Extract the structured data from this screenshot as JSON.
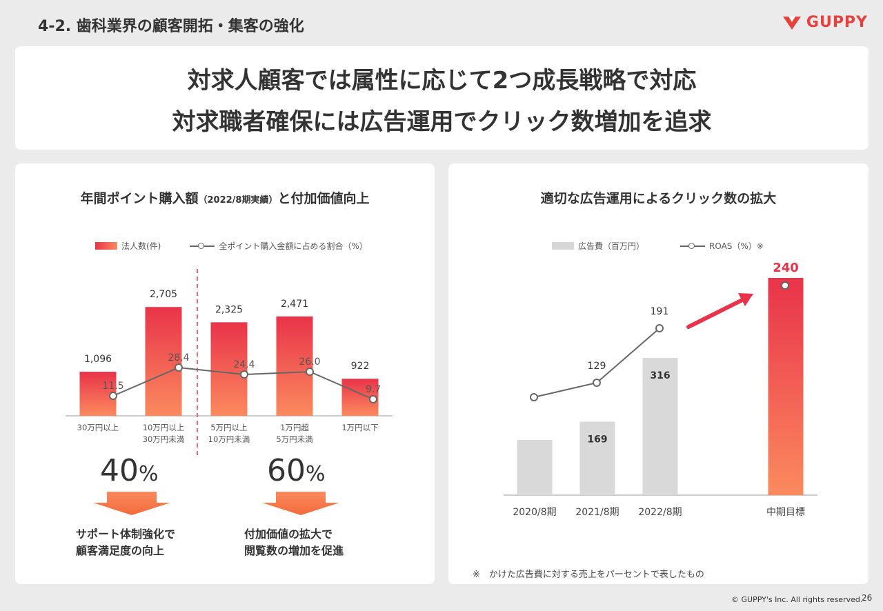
{
  "header": {
    "title": "4-2.  歯科業界の顧客開拓・集客の強化",
    "logo_text": "GUPPY"
  },
  "banner": {
    "line1": "対求人顧客では属性に応じて2つ成長戦略で対応",
    "line2": "対求職者確保には広告運用でクリック数増加を追求"
  },
  "left_panel": {
    "title_main": "年間ポイント購入額",
    "title_sub": "（2022/8期実績）",
    "title_tail": "と付加価値向上",
    "legend_bar": "法人数(件)",
    "legend_line": "全ポイント購入金額に占める割合（%）",
    "left_pct_value": "40",
    "left_pct_unit": "%",
    "right_pct_value": "60",
    "right_pct_unit": "%",
    "left_caption_1": "サポート体制強化で",
    "left_caption_2": "顧客満足度の向上",
    "right_caption_1": "付加価値の拡大で",
    "right_caption_2": "閲覧数の増加を促進"
  },
  "right_panel": {
    "title": "適切な広告運用によるクリック数の拡大",
    "legend_bar": "広告費（百万円）",
    "legend_line": "ROAS（%）※",
    "note": "※　かけた広告費に対する売上をパーセントで表したもの"
  },
  "footer": {
    "copyright": "© GUPPY's Inc. All rights reserved.",
    "page": "26"
  },
  "colors": {
    "accent_red": "#e9334a",
    "accent_orange": "#fb8a5e",
    "grey_bar": "#d9d9d9",
    "brand": "#e8413d"
  },
  "chart_data": [
    {
      "type": "bar",
      "categories": [
        "30万円以上",
        "10万円以上\n30万円未満",
        "5万円以上\n10万円未満",
        "1万円超\n5万円未満",
        "1万円以下"
      ],
      "series": [
        {
          "name": "法人数(件)",
          "values": [
            1096,
            2705,
            2325,
            2471,
            922
          ],
          "labels": [
            "1,096",
            "2,705",
            "2,325",
            "2,471",
            "922"
          ]
        },
        {
          "name": "全ポイント購入金額に占める割合（%）",
          "type": "line",
          "values": [
            11.5,
            28.4,
            24.4,
            26.0,
            9.7
          ],
          "labels": [
            "11.5",
            "28.4",
            "24.4",
            "26.0",
            "9.7"
          ]
        }
      ]
    },
    {
      "type": "bar",
      "categories": [
        "2020/8期",
        "2021/8期",
        "2022/8期",
        "中期目標"
      ],
      "series": [
        {
          "name": "広告費（百万円）",
          "values": [
            null,
            169,
            316,
            null
          ],
          "labels": [
            "",
            "169",
            "316",
            ""
          ]
        },
        {
          "name": "ROAS（%）※",
          "type": "line",
          "values": [
            null,
            129,
            191,
            240
          ],
          "labels": [
            "",
            "129",
            "191",
            "240"
          ]
        }
      ]
    }
  ]
}
